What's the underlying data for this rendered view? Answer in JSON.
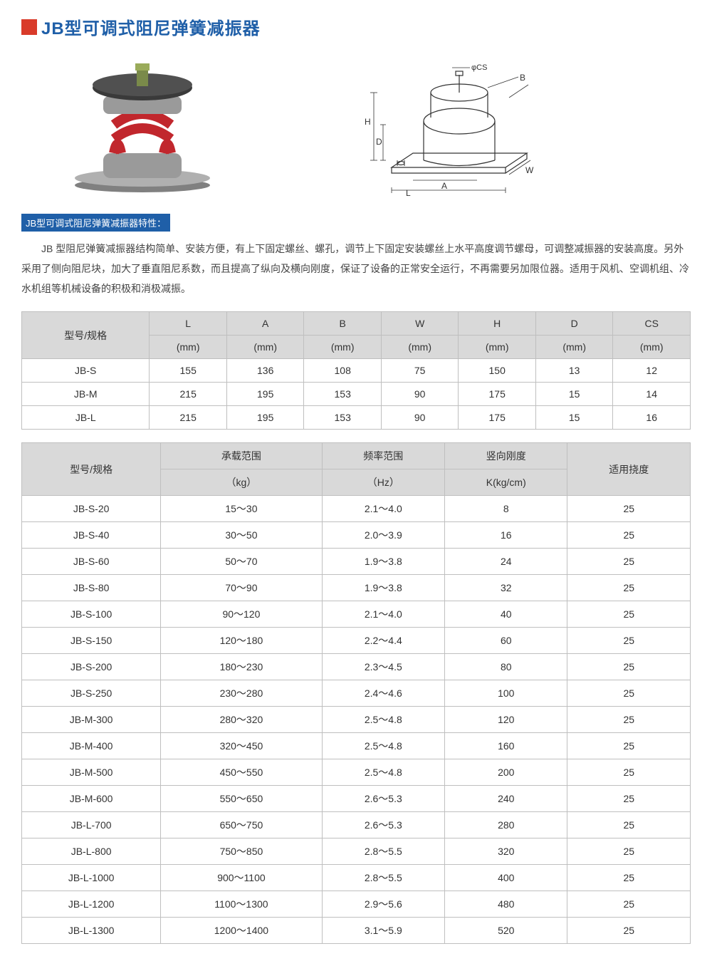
{
  "title": "JB型可调式阻尼弹簧减振器",
  "colors": {
    "accent_red": "#d93b2a",
    "heading_blue": "#1f5fa8",
    "table_header_bg": "#d9d9d9",
    "border": "#bfbfbf",
    "text": "#333333"
  },
  "features_label": "JB型可调式阻尼弹簧减振器特性：",
  "description": "JB 型阻尼弹簧减振器结构简单、安装方便，有上下固定螺丝、螺孔，调节上下固定安装螺丝上水平高度调节螺母，可调整减振器的安装高度。另外采用了侧向阻尼块，加大了垂直阻尼系数，而且提高了纵向及横向刚度，保证了设备的正常安全运行，不再需要另加限位器。适用于风机、空调机组、冷水机组等机械设备的积极和消极减振。",
  "diagram_labels": {
    "CS": "φCS",
    "B": "B",
    "H": "H",
    "D": "D",
    "A": "A",
    "L": "L",
    "W": "W"
  },
  "table1": {
    "row_header": "型号/规格",
    "columns": [
      "L",
      "A",
      "B",
      "W",
      "H",
      "D",
      "CS"
    ],
    "unit_row": [
      "(mm)",
      "(mm)",
      "(mm)",
      "(mm)",
      "(mm)",
      "(mm)",
      "(mm)"
    ],
    "rows": [
      {
        "model": "JB-S",
        "vals": [
          "155",
          "136",
          "108",
          "75",
          "150",
          "13",
          "12"
        ]
      },
      {
        "model": "JB-M",
        "vals": [
          "215",
          "195",
          "153",
          "90",
          "175",
          "15",
          "14"
        ]
      },
      {
        "model": "JB-L",
        "vals": [
          "215",
          "195",
          "153",
          "90",
          "175",
          "15",
          "16"
        ]
      }
    ]
  },
  "table2": {
    "headers_top": [
      "型号/规格",
      "承载范围",
      "频率范围",
      "竖向刚度",
      "适用挠度"
    ],
    "headers_unit": [
      "",
      "（kg）",
      "（Hz）",
      "K(kg/cm)",
      ""
    ],
    "rows": [
      [
        "JB-S-20",
        "15～30",
        "2.1～4.0",
        "8",
        "25"
      ],
      [
        "JB-S-40",
        "30～50",
        "2.0～3.9",
        "16",
        "25"
      ],
      [
        "JB-S-60",
        "50～70",
        "1.9～3.8",
        "24",
        "25"
      ],
      [
        "JB-S-80",
        "70～90",
        "1.9～3.8",
        "32",
        "25"
      ],
      [
        "JB-S-100",
        "90～120",
        "2.1～4.0",
        "40",
        "25"
      ],
      [
        "JB-S-150",
        "120～180",
        "2.2～4.4",
        "60",
        "25"
      ],
      [
        "JB-S-200",
        "180～230",
        "2.3～4.5",
        "80",
        "25"
      ],
      [
        "JB-S-250",
        "230～280",
        "2.4～4.6",
        "100",
        "25"
      ],
      [
        "JB-M-300",
        "280～320",
        "2.5～4.8",
        "120",
        "25"
      ],
      [
        "JB-M-400",
        "320～450",
        "2.5～4.8",
        "160",
        "25"
      ],
      [
        "JB-M-500",
        "450～550",
        "2.5～4.8",
        "200",
        "25"
      ],
      [
        "JB-M-600",
        "550～650",
        "2.6～5.3",
        "240",
        "25"
      ],
      [
        "JB-L-700",
        "650～750",
        "2.6～5.3",
        "280",
        "25"
      ],
      [
        "JB-L-800",
        "750～850",
        "2.8～5.5",
        "320",
        "25"
      ],
      [
        "JB-L-1000",
        "900～1100",
        "2.8～5.5",
        "400",
        "25"
      ],
      [
        "JB-L-1200",
        "1100～1300",
        "2.9～5.6",
        "480",
        "25"
      ],
      [
        "JB-L-1300",
        "1200～1400",
        "3.1～5.9",
        "520",
        "25"
      ]
    ]
  }
}
